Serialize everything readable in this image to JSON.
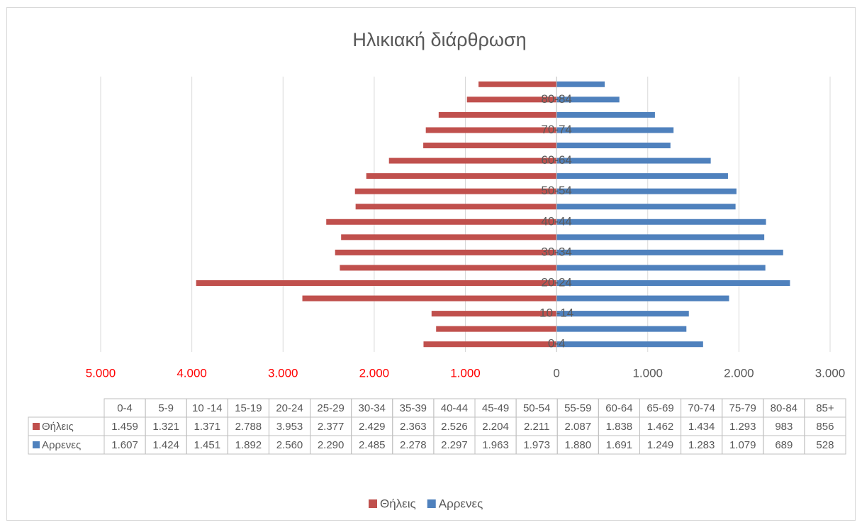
{
  "chart_data": {
    "type": "bar",
    "orientation": "horizontal",
    "title": "Ηλικιακή διάρθρωση",
    "categories": [
      "0-4",
      "5-9",
      "10 -14",
      "15-19",
      "20-24",
      "25-29",
      "30-34",
      "35-39",
      "40-44",
      "45-49",
      "50-54",
      "55-59",
      "60-64",
      "65-69",
      "70-74",
      "75-79",
      "80-84",
      "85+"
    ],
    "series": [
      {
        "name": "Θήλεις",
        "color": "#c0504d",
        "values": [
          -1459,
          -1321,
          -1371,
          -2788,
          -3953,
          -2377,
          -2429,
          -2363,
          -2526,
          -2204,
          -2211,
          -2087,
          -1838,
          -1462,
          -1434,
          -1293,
          -983,
          -856
        ],
        "value_labels": [
          "1.459",
          "1.321",
          "1.371",
          "2.788",
          "3.953",
          "2.377",
          "2.429",
          "2.363",
          "2.526",
          "2.204",
          "2.211",
          "2.087",
          "1.838",
          "1.462",
          "1.434",
          "1.293",
          "983",
          "856"
        ]
      },
      {
        "name": "Αρρενες",
        "color": "#4f81bd",
        "values": [
          1607,
          1424,
          1451,
          1892,
          2560,
          2290,
          2485,
          2278,
          2297,
          1963,
          1973,
          1880,
          1691,
          1249,
          1283,
          1079,
          689,
          528
        ],
        "value_labels": [
          "1.607",
          "1.424",
          "1.451",
          "1.892",
          "2.560",
          "2.290",
          "2.485",
          "2.278",
          "2.297",
          "1.963",
          "1.973",
          "1.880",
          "1.691",
          "1.249",
          "1.283",
          "1.079",
          "689",
          "528"
        ]
      }
    ],
    "xlim": [
      -5000,
      3000
    ],
    "xticks": [
      {
        "value": -5000,
        "label": "5.000",
        "color": "#ff0000"
      },
      {
        "value": -4000,
        "label": "4.000",
        "color": "#ff0000"
      },
      {
        "value": -3000,
        "label": "3.000",
        "color": "#ff0000"
      },
      {
        "value": -2000,
        "label": "2.000",
        "color": "#ff0000"
      },
      {
        "value": -1000,
        "label": "1.000",
        "color": "#ff0000"
      },
      0,
      {
        "value": 1000,
        "label": "1.000"
      },
      {
        "value": 2000,
        "label": "2.000"
      },
      {
        "value": 3000,
        "label": "3.000"
      }
    ],
    "grid": true,
    "legend": "bottom",
    "data_table": true
  }
}
